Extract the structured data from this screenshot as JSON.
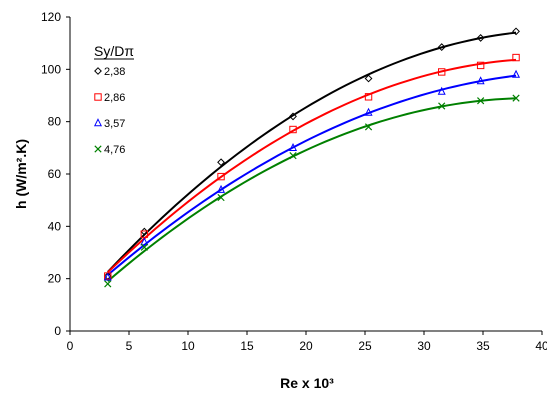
{
  "chart_data": {
    "type": "scatter",
    "xlabel": "Re x 10³",
    "ylabel": "h (W/m².K)",
    "xlim": [
      0,
      40
    ],
    "ylim": [
      0,
      120
    ],
    "xticks": [
      0,
      5,
      10,
      15,
      20,
      25,
      30,
      35,
      40
    ],
    "yticks": [
      0,
      20,
      40,
      60,
      80,
      100,
      120
    ],
    "grid": false,
    "legend": {
      "title": "Sy/Dπ",
      "placement": "top-left"
    },
    "series": [
      {
        "name": "2,38",
        "marker": "diamond",
        "color": "#000000",
        "x": [
          3.2,
          6.3,
          12.8,
          18.9,
          25.3,
          31.5,
          34.8,
          37.8
        ],
        "y": [
          21,
          38,
          64.5,
          82,
          96.5,
          108.5,
          112,
          114.5
        ]
      },
      {
        "name": "2,86",
        "marker": "square",
        "color": "#ff0000",
        "x": [
          3.2,
          6.3,
          12.8,
          18.9,
          25.3,
          31.5,
          34.8,
          37.8
        ],
        "y": [
          21,
          37,
          59,
          77,
          89.5,
          99,
          101.5,
          104.5
        ]
      },
      {
        "name": "3,57",
        "marker": "triangle",
        "color": "#0000ff",
        "x": [
          3.2,
          6.3,
          12.8,
          18.9,
          25.3,
          31.5,
          34.8,
          37.8
        ],
        "y": [
          20.5,
          34,
          54,
          70,
          83.5,
          91.5,
          95.5,
          98
        ]
      },
      {
        "name": "4,76",
        "marker": "x",
        "color": "#008000",
        "x": [
          3.2,
          6.3,
          12.8,
          18.9,
          25.3,
          31.5,
          34.8,
          37.8
        ],
        "y": [
          18,
          32,
          51,
          67,
          78,
          86,
          88,
          89
        ]
      }
    ]
  }
}
